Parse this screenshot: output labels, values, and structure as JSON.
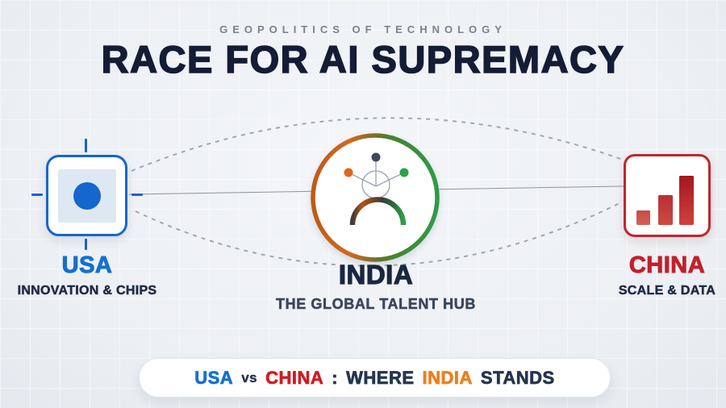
{
  "header": {
    "kicker": "GEOPOLITICS OF TECHNOLOGY",
    "title": "RACE FOR AI SUPREMACY"
  },
  "nodes": {
    "usa": {
      "name": "USA",
      "tagline": "INNOVATION & CHIPS",
      "accent": "#1470cf",
      "icon": "chip-crosshair-icon"
    },
    "india": {
      "name": "INDIA",
      "tagline": "THE GLOBAL TALENT HUB",
      "saffron": "#d2691e",
      "green": "#2f9b49",
      "icon": "talent-network-person-icon"
    },
    "china": {
      "name": "CHINA",
      "tagline": "SCALE & DATA",
      "accent": "#c3202a",
      "icon": "rising-bar-chart-icon"
    }
  },
  "banner": {
    "segments": [
      {
        "text": "USA",
        "color": "#1470cf"
      },
      {
        "text": "vs",
        "color": "#25354e",
        "small": true
      },
      {
        "text": "CHINA",
        "color": "#cf1d22"
      },
      {
        "text": ":",
        "color": "#25354e"
      },
      {
        "text": "WHERE",
        "color": "#25354e"
      },
      {
        "text": "INDIA",
        "color": "#ef7d1a"
      },
      {
        "text": "STANDS",
        "color": "#25354e"
      }
    ]
  },
  "colors": {
    "background": "#eef1f5",
    "title_text": "#141d35",
    "kicker_text": "#79828f",
    "tagline_text": "#202d44",
    "connector_dashed": "#a0a8b3",
    "connector_solid": "#8e949e",
    "usa_blue": "#1765cc",
    "china_red": "#c0262c",
    "india_orange_dot": "#e2641f",
    "india_navy_dot": "#3d4859",
    "india_green_dot": "#27a348"
  }
}
